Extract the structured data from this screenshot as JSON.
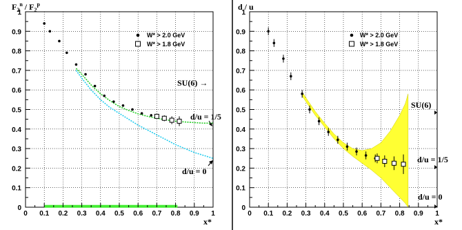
{
  "chart_data": [
    {
      "type": "scatter",
      "panel": "left",
      "ylabel": "F2n / F2p",
      "ylabel_parts": {
        "F": "F",
        "s1": "2",
        "p1": "n",
        "mid": " / F",
        "s2": "2",
        "p2": "p"
      },
      "xlabel": "x*",
      "xlim": [
        0,
        1
      ],
      "ylim": [
        0,
        1
      ],
      "x_ticks": [
        "0",
        "0.1",
        "0.2",
        "0.3",
        "0.4",
        "0.5",
        "0.6",
        "0.7",
        "0.8",
        "0.9",
        "1"
      ],
      "y_ticks": [
        "0",
        "0.1",
        "0.2",
        "0.3",
        "0.4",
        "0.5",
        "0.6",
        "0.7",
        "0.8",
        "0.9",
        "1"
      ],
      "grid": true,
      "legend": {
        "placement": "top-right",
        "entries": [
          "W* > 2.0 GeV",
          "W* > 1.8 GeV"
        ]
      },
      "annotations": [
        "SU(6) →",
        "d/u = 1/5",
        "d/u = 0"
      ],
      "series": [
        {
          "name": "W* > 2.0 GeV",
          "marker": "filled-circle",
          "x": [
            0.1,
            0.13,
            0.18,
            0.22,
            0.27,
            0.32,
            0.37,
            0.42,
            0.47,
            0.52,
            0.57,
            0.62,
            0.67
          ],
          "y": [
            0.94,
            0.9,
            0.85,
            0.79,
            0.73,
            0.68,
            0.62,
            0.57,
            0.54,
            0.52,
            0.5,
            0.48,
            0.47
          ],
          "yerr": [
            0.003,
            0.003,
            0.003,
            0.003,
            0.004,
            0.004,
            0.004,
            0.005,
            0.005,
            0.005,
            0.006,
            0.006,
            0.007
          ]
        },
        {
          "name": "W* > 1.8 GeV",
          "marker": "open-square",
          "x": [
            0.7,
            0.74,
            0.78,
            0.82
          ],
          "y": [
            0.465,
            0.455,
            0.445,
            0.44
          ],
          "yerr": [
            0.01,
            0.015,
            0.02,
            0.025
          ]
        },
        {
          "type": "line",
          "color": "#22cc22",
          "style": "dashed",
          "x": [
            0.27,
            0.3,
            0.35,
            0.4,
            0.45,
            0.5,
            0.55,
            0.6,
            0.65,
            0.7,
            0.75,
            0.8,
            0.85,
            0.9,
            0.95,
            1.0
          ],
          "y": [
            0.71,
            0.68,
            0.625,
            0.58,
            0.545,
            0.515,
            0.495,
            0.478,
            0.465,
            0.455,
            0.447,
            0.44,
            0.436,
            0.433,
            0.43,
            0.43
          ]
        },
        {
          "type": "line",
          "color": "#22ccee",
          "style": "dashed",
          "x": [
            0.27,
            0.3,
            0.35,
            0.4,
            0.45,
            0.5,
            0.55,
            0.6,
            0.65,
            0.7,
            0.75,
            0.8,
            0.85,
            0.9,
            0.95,
            1.0
          ],
          "y": [
            0.7,
            0.66,
            0.6,
            0.55,
            0.51,
            0.48,
            0.45,
            0.42,
            0.395,
            0.37,
            0.345,
            0.32,
            0.3,
            0.28,
            0.265,
            0.25
          ]
        },
        {
          "type": "bar",
          "color": "#44ee33",
          "x_range": [
            0.1,
            0.81
          ],
          "height": 0.008
        }
      ]
    },
    {
      "type": "scatter",
      "panel": "right",
      "ylabel": "d / u",
      "xlabel": "x*",
      "xlim": [
        0,
        1
      ],
      "ylim": [
        0,
        1
      ],
      "x_ticks": [
        "0",
        "0.1",
        "0.2",
        "0.3",
        "0.4",
        "0.5",
        "0.6",
        "0.7",
        "0.8",
        "0.9",
        "1"
      ],
      "y_ticks": [
        "0",
        "0.1",
        "0.2",
        "0.3",
        "0.4",
        "0.5",
        "0.6",
        "0.7",
        "0.8",
        "0.9",
        "1"
      ],
      "grid": true,
      "legend": {
        "placement": "top-right",
        "entries": [
          "W* > 2.0 GeV",
          "W* > 1.8 GeV"
        ]
      },
      "annotations": [
        "SU(6)",
        "d/u = 1/5",
        "d/u = 0"
      ],
      "series": [
        {
          "name": "W* > 2.0 GeV",
          "marker": "filled-circle",
          "x": [
            0.1,
            0.13,
            0.18,
            0.22,
            0.28,
            0.32,
            0.37,
            0.42,
            0.47,
            0.52,
            0.57,
            0.62,
            0.67
          ],
          "y": [
            0.9,
            0.84,
            0.76,
            0.67,
            0.58,
            0.5,
            0.44,
            0.385,
            0.345,
            0.31,
            0.285,
            0.265,
            0.25
          ],
          "yerr": [
            0.02,
            0.02,
            0.02,
            0.02,
            0.02,
            0.02,
            0.02,
            0.02,
            0.02,
            0.02,
            0.02,
            0.02,
            0.02
          ]
        },
        {
          "name": "W* > 1.8 GeV",
          "marker": "open-square",
          "x": [
            0.68,
            0.72,
            0.77,
            0.82
          ],
          "y": [
            0.25,
            0.235,
            0.225,
            0.22
          ],
          "yerr": [
            0.025,
            0.03,
            0.035,
            0.05
          ]
        },
        {
          "type": "band",
          "color": "#ffff33",
          "x": [
            0.28,
            0.3,
            0.35,
            0.4,
            0.45,
            0.5,
            0.55,
            0.6,
            0.65,
            0.7,
            0.75,
            0.8,
            0.83,
            0.845
          ],
          "upper": [
            0.59,
            0.56,
            0.49,
            0.43,
            0.375,
            0.33,
            0.3,
            0.29,
            0.3,
            0.33,
            0.39,
            0.47,
            0.53,
            0.58
          ],
          "lower": [
            0.57,
            0.54,
            0.47,
            0.41,
            0.35,
            0.3,
            0.26,
            0.225,
            0.19,
            0.15,
            0.1,
            0.05,
            0.02,
            0.0
          ]
        }
      ]
    }
  ]
}
